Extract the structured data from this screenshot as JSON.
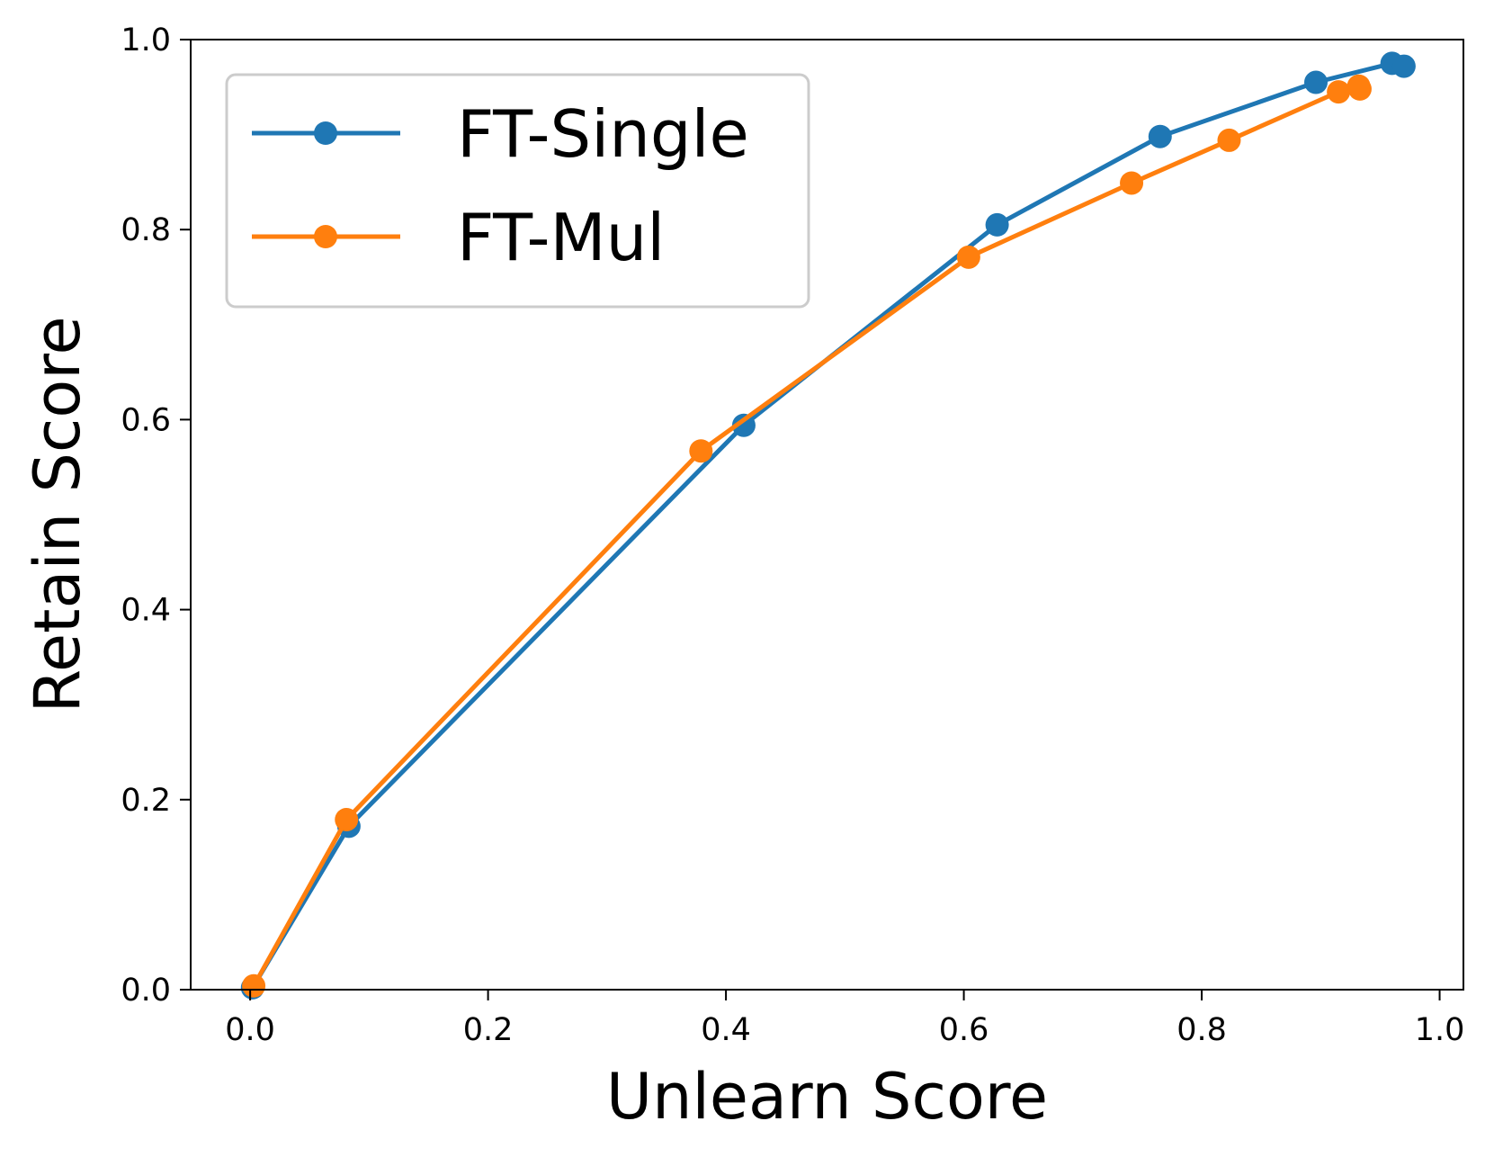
{
  "chart_data": {
    "type": "line",
    "title": "",
    "xlabel": "Unlearn Score",
    "ylabel": "Retain Score",
    "xlim": [
      -0.05,
      1.02
    ],
    "ylim": [
      0.0,
      1.0
    ],
    "x_ticks": [
      0.0,
      0.2,
      0.4,
      0.6,
      0.8,
      1.0
    ],
    "y_ticks": [
      0.0,
      0.2,
      0.4,
      0.6,
      0.8,
      1.0
    ],
    "x_tick_labels": [
      "0.0",
      "0.2",
      "0.4",
      "0.6",
      "0.8",
      "1.0"
    ],
    "y_tick_labels": [
      "0.0",
      "0.2",
      "0.4",
      "0.6",
      "0.8",
      "1.0"
    ],
    "grid": false,
    "legend_position": "top-left",
    "series": [
      {
        "name": "FT-Single",
        "color": "#1f77b4",
        "marker": "circle",
        "x": [
          0.002,
          0.083,
          0.415,
          0.628,
          0.765,
          0.896,
          0.96,
          0.97
        ],
        "y": [
          0.002,
          0.172,
          0.594,
          0.805,
          0.898,
          0.955,
          0.975,
          0.972
        ]
      },
      {
        "name": "FT-Mul",
        "color": "#ff7f0e",
        "marker": "circle",
        "x": [
          0.003,
          0.081,
          0.379,
          0.604,
          0.741,
          0.823,
          0.915,
          0.933,
          0.932
        ],
        "y": [
          0.004,
          0.179,
          0.567,
          0.771,
          0.849,
          0.894,
          0.945,
          0.948,
          0.951
        ]
      }
    ]
  }
}
